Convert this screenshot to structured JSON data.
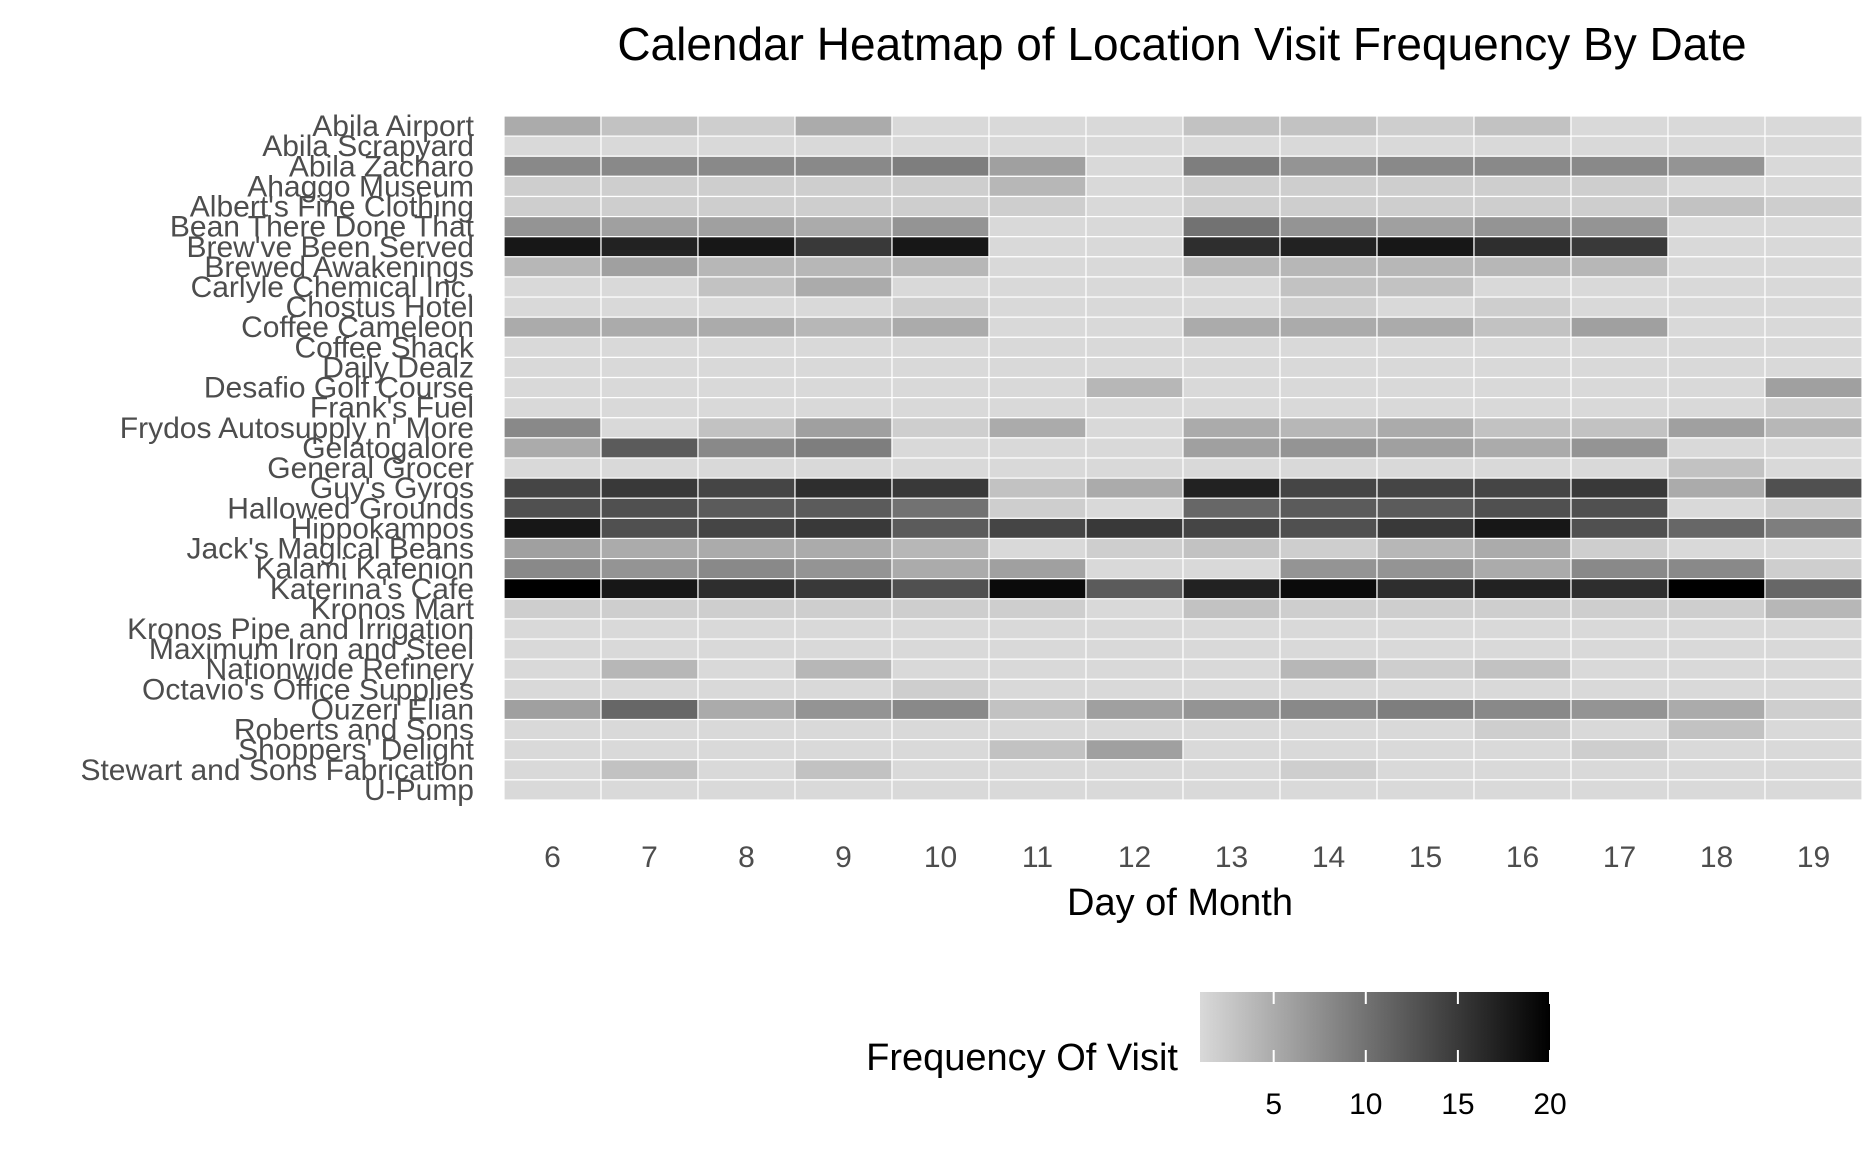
{
  "chart_data": {
    "type": "heatmap",
    "title": "Calendar Heatmap of Location Visit Frequency By Date",
    "xlabel": "Day of Month",
    "ylabel": "",
    "x": [
      6,
      7,
      8,
      9,
      10,
      11,
      12,
      13,
      14,
      15,
      16,
      17,
      18,
      19
    ],
    "y": [
      "Abila Airport",
      "Abila Scrapyard",
      "Abila Zacharo",
      "Ahaggo Museum",
      "Albert's Fine Clothing",
      "Bean There Done That",
      "Brew've Been Served",
      "Brewed Awakenings",
      "Carlyle Chemical Inc.",
      "Chostus Hotel",
      "Coffee Cameleon",
      "Coffee Shack",
      "Daily Dealz",
      "Desafio Golf Course",
      "Frank's Fuel",
      "Frydos Autosupply n' More",
      "Gelatogalore",
      "General Grocer",
      "Guy's Gyros",
      "Hallowed Grounds",
      "Hippokampos",
      "Jack's Magical Beans",
      "Kalami Kafenion",
      "Katerina's Cafe",
      "Kronos Mart",
      "Kronos Pipe and Irrigation",
      "Maximum Iron and Steel",
      "Nationwide Refinery",
      "Octavio's Office Supplies",
      "Ouzeri Elian",
      "Roberts and Sons",
      "Shoppers' Delight",
      "Stewart and Sons Fabrication",
      "U-Pump"
    ],
    "values": [
      [
        5,
        3,
        2,
        5,
        1,
        1,
        1,
        3,
        3,
        2,
        3,
        1,
        1,
        1
      ],
      [
        1,
        1,
        1,
        1,
        1,
        1,
        1,
        1,
        1,
        1,
        1,
        1,
        1,
        1
      ],
      [
        8,
        8,
        8,
        8,
        9,
        6,
        1,
        9,
        7,
        8,
        8,
        8,
        7,
        1
      ],
      [
        2,
        2,
        2,
        2,
        2,
        4,
        1,
        2,
        2,
        2,
        2,
        2,
        1,
        1
      ],
      [
        2,
        2,
        2,
        2,
        2,
        2,
        1,
        2,
        2,
        2,
        2,
        2,
        3,
        2
      ],
      [
        7,
        6,
        6,
        5,
        7,
        1,
        1,
        10,
        7,
        6,
        7,
        7,
        1,
        1
      ],
      [
        18,
        17,
        18,
        15,
        18,
        1,
        1,
        16,
        17,
        18,
        16,
        15,
        1,
        1
      ],
      [
        4,
        6,
        4,
        4,
        4,
        1,
        1,
        4,
        4,
        4,
        4,
        4,
        1,
        1
      ],
      [
        1,
        1,
        3,
        5,
        1,
        1,
        1,
        1,
        3,
        3,
        1,
        1,
        1,
        1
      ],
      [
        1,
        1,
        1,
        1,
        2,
        1,
        1,
        1,
        2,
        1,
        2,
        1,
        1,
        1
      ],
      [
        5,
        5,
        5,
        4,
        5,
        1,
        1,
        5,
        5,
        5,
        3,
        6,
        1,
        1
      ],
      [
        1,
        1,
        1,
        1,
        1,
        1,
        1,
        1,
        1,
        1,
        1,
        1,
        1,
        1
      ],
      [
        1,
        1,
        1,
        1,
        1,
        1,
        1,
        1,
        1,
        1,
        1,
        1,
        1,
        1
      ],
      [
        1,
        1,
        1,
        1,
        1,
        1,
        4,
        1,
        1,
        1,
        1,
        1,
        1,
        6
      ],
      [
        1,
        1,
        1,
        1,
        1,
        1,
        1,
        1,
        1,
        1,
        1,
        1,
        1,
        2
      ],
      [
        8,
        1,
        3,
        6,
        2,
        5,
        1,
        5,
        4,
        5,
        3,
        3,
        6,
        4
      ],
      [
        5,
        12,
        8,
        9,
        1,
        1,
        1,
        6,
        7,
        6,
        5,
        7,
        1,
        1
      ],
      [
        1,
        1,
        1,
        1,
        1,
        1,
        1,
        1,
        1,
        1,
        1,
        1,
        3,
        1
      ],
      [
        14,
        15,
        14,
        16,
        15,
        3,
        5,
        17,
        14,
        14,
        14,
        15,
        5,
        13
      ],
      [
        13,
        13,
        12,
        12,
        10,
        2,
        1,
        11,
        12,
        12,
        13,
        13,
        1,
        2
      ],
      [
        18,
        13,
        14,
        15,
        12,
        14,
        15,
        14,
        13,
        15,
        18,
        13,
        11,
        9
      ],
      [
        6,
        5,
        5,
        5,
        4,
        1,
        2,
        3,
        2,
        4,
        5,
        2,
        1,
        1
      ],
      [
        8,
        7,
        8,
        7,
        5,
        6,
        1,
        1,
        7,
        7,
        5,
        8,
        8,
        2
      ],
      [
        20,
        18,
        16,
        15,
        13,
        19,
        12,
        17,
        19,
        16,
        17,
        16,
        20,
        11
      ],
      [
        2,
        2,
        2,
        2,
        2,
        2,
        1,
        3,
        2,
        2,
        2,
        2,
        2,
        4
      ],
      [
        1,
        1,
        1,
        1,
        1,
        1,
        1,
        1,
        1,
        1,
        1,
        1,
        1,
        1
      ],
      [
        1,
        1,
        1,
        1,
        1,
        1,
        1,
        1,
        1,
        1,
        1,
        1,
        1,
        1
      ],
      [
        1,
        4,
        1,
        4,
        1,
        1,
        1,
        1,
        4,
        2,
        3,
        1,
        1,
        1
      ],
      [
        1,
        1,
        1,
        1,
        2,
        1,
        1,
        1,
        1,
        1,
        1,
        1,
        1,
        1
      ],
      [
        6,
        11,
        5,
        7,
        8,
        3,
        6,
        7,
        8,
        9,
        8,
        7,
        5,
        2
      ],
      [
        1,
        1,
        1,
        1,
        1,
        1,
        1,
        1,
        1,
        1,
        2,
        1,
        3,
        1
      ],
      [
        1,
        1,
        1,
        1,
        1,
        3,
        6,
        1,
        1,
        1,
        1,
        2,
        1,
        1
      ],
      [
        1,
        3,
        1,
        3,
        1,
        1,
        1,
        1,
        2,
        1,
        1,
        1,
        1,
        1
      ],
      [
        1,
        1,
        1,
        1,
        1,
        1,
        1,
        1,
        1,
        1,
        1,
        1,
        1,
        1
      ]
    ],
    "color_scale": {
      "low": "#d9d9d9",
      "high": "#000000",
      "min": 1,
      "max": 20,
      "breaks": [
        5,
        10,
        15,
        20
      ]
    },
    "legend": {
      "title": "Frequency Of Visit",
      "position": "bottom"
    },
    "grid": false,
    "tile_border_color": "#ffffff"
  }
}
